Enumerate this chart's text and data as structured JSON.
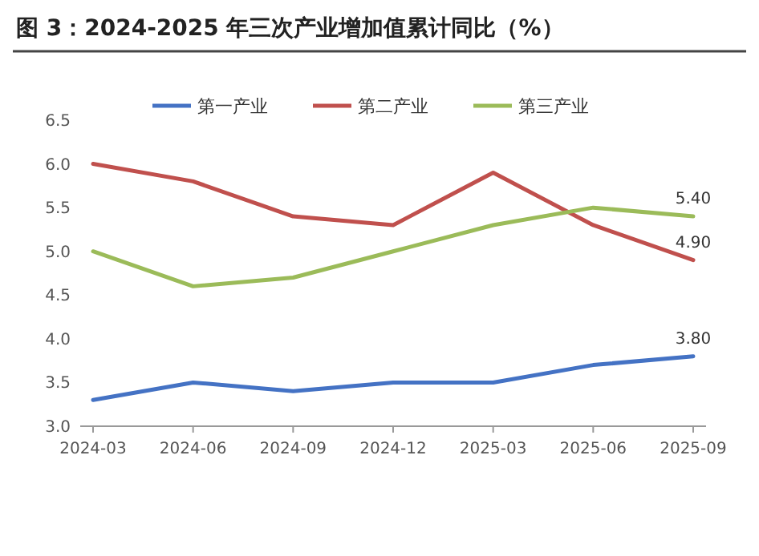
{
  "chart_data": {
    "type": "line",
    "title": "图 3：2024-2025 年三次产业增加值累计同比（%）",
    "categories": [
      "2024-03",
      "2024-06",
      "2024-09",
      "2024-12",
      "2025-03",
      "2025-06",
      "2025-09"
    ],
    "series": [
      {
        "name": "第一产业",
        "color": "#4472c4",
        "values": [
          3.3,
          3.5,
          3.4,
          3.5,
          3.5,
          3.7,
          3.8
        ],
        "value_labels": [
          null,
          null,
          null,
          null,
          null,
          null,
          "3.80"
        ]
      },
      {
        "name": "第二产业",
        "color": "#c0504d",
        "values": [
          6.0,
          5.8,
          5.4,
          5.3,
          5.9,
          5.3,
          4.9
        ],
        "value_labels": [
          null,
          null,
          null,
          null,
          null,
          null,
          "4.90"
        ]
      },
      {
        "name": "第三产业",
        "color": "#9bbb59",
        "values": [
          5.0,
          4.6,
          4.7,
          5.0,
          5.3,
          5.5,
          5.4
        ],
        "value_labels": [
          null,
          null,
          null,
          null,
          null,
          null,
          "5.40"
        ]
      }
    ],
    "ylim": [
      3.0,
      6.5
    ],
    "yticks": [
      {
        "value": 3.0,
        "label": "3.0"
      },
      {
        "value": 3.5,
        "label": "3.5"
      },
      {
        "value": 4.0,
        "label": "4.0"
      },
      {
        "value": 4.5,
        "label": "4.5"
      },
      {
        "value": 5.0,
        "label": "5.0"
      },
      {
        "value": 5.5,
        "label": "5.5"
      },
      {
        "value": 6.0,
        "label": "6.0"
      },
      {
        "value": 6.5,
        "label": "6.5"
      }
    ],
    "grid": false,
    "legend": "top",
    "marker": "none",
    "line_style": "solid"
  }
}
